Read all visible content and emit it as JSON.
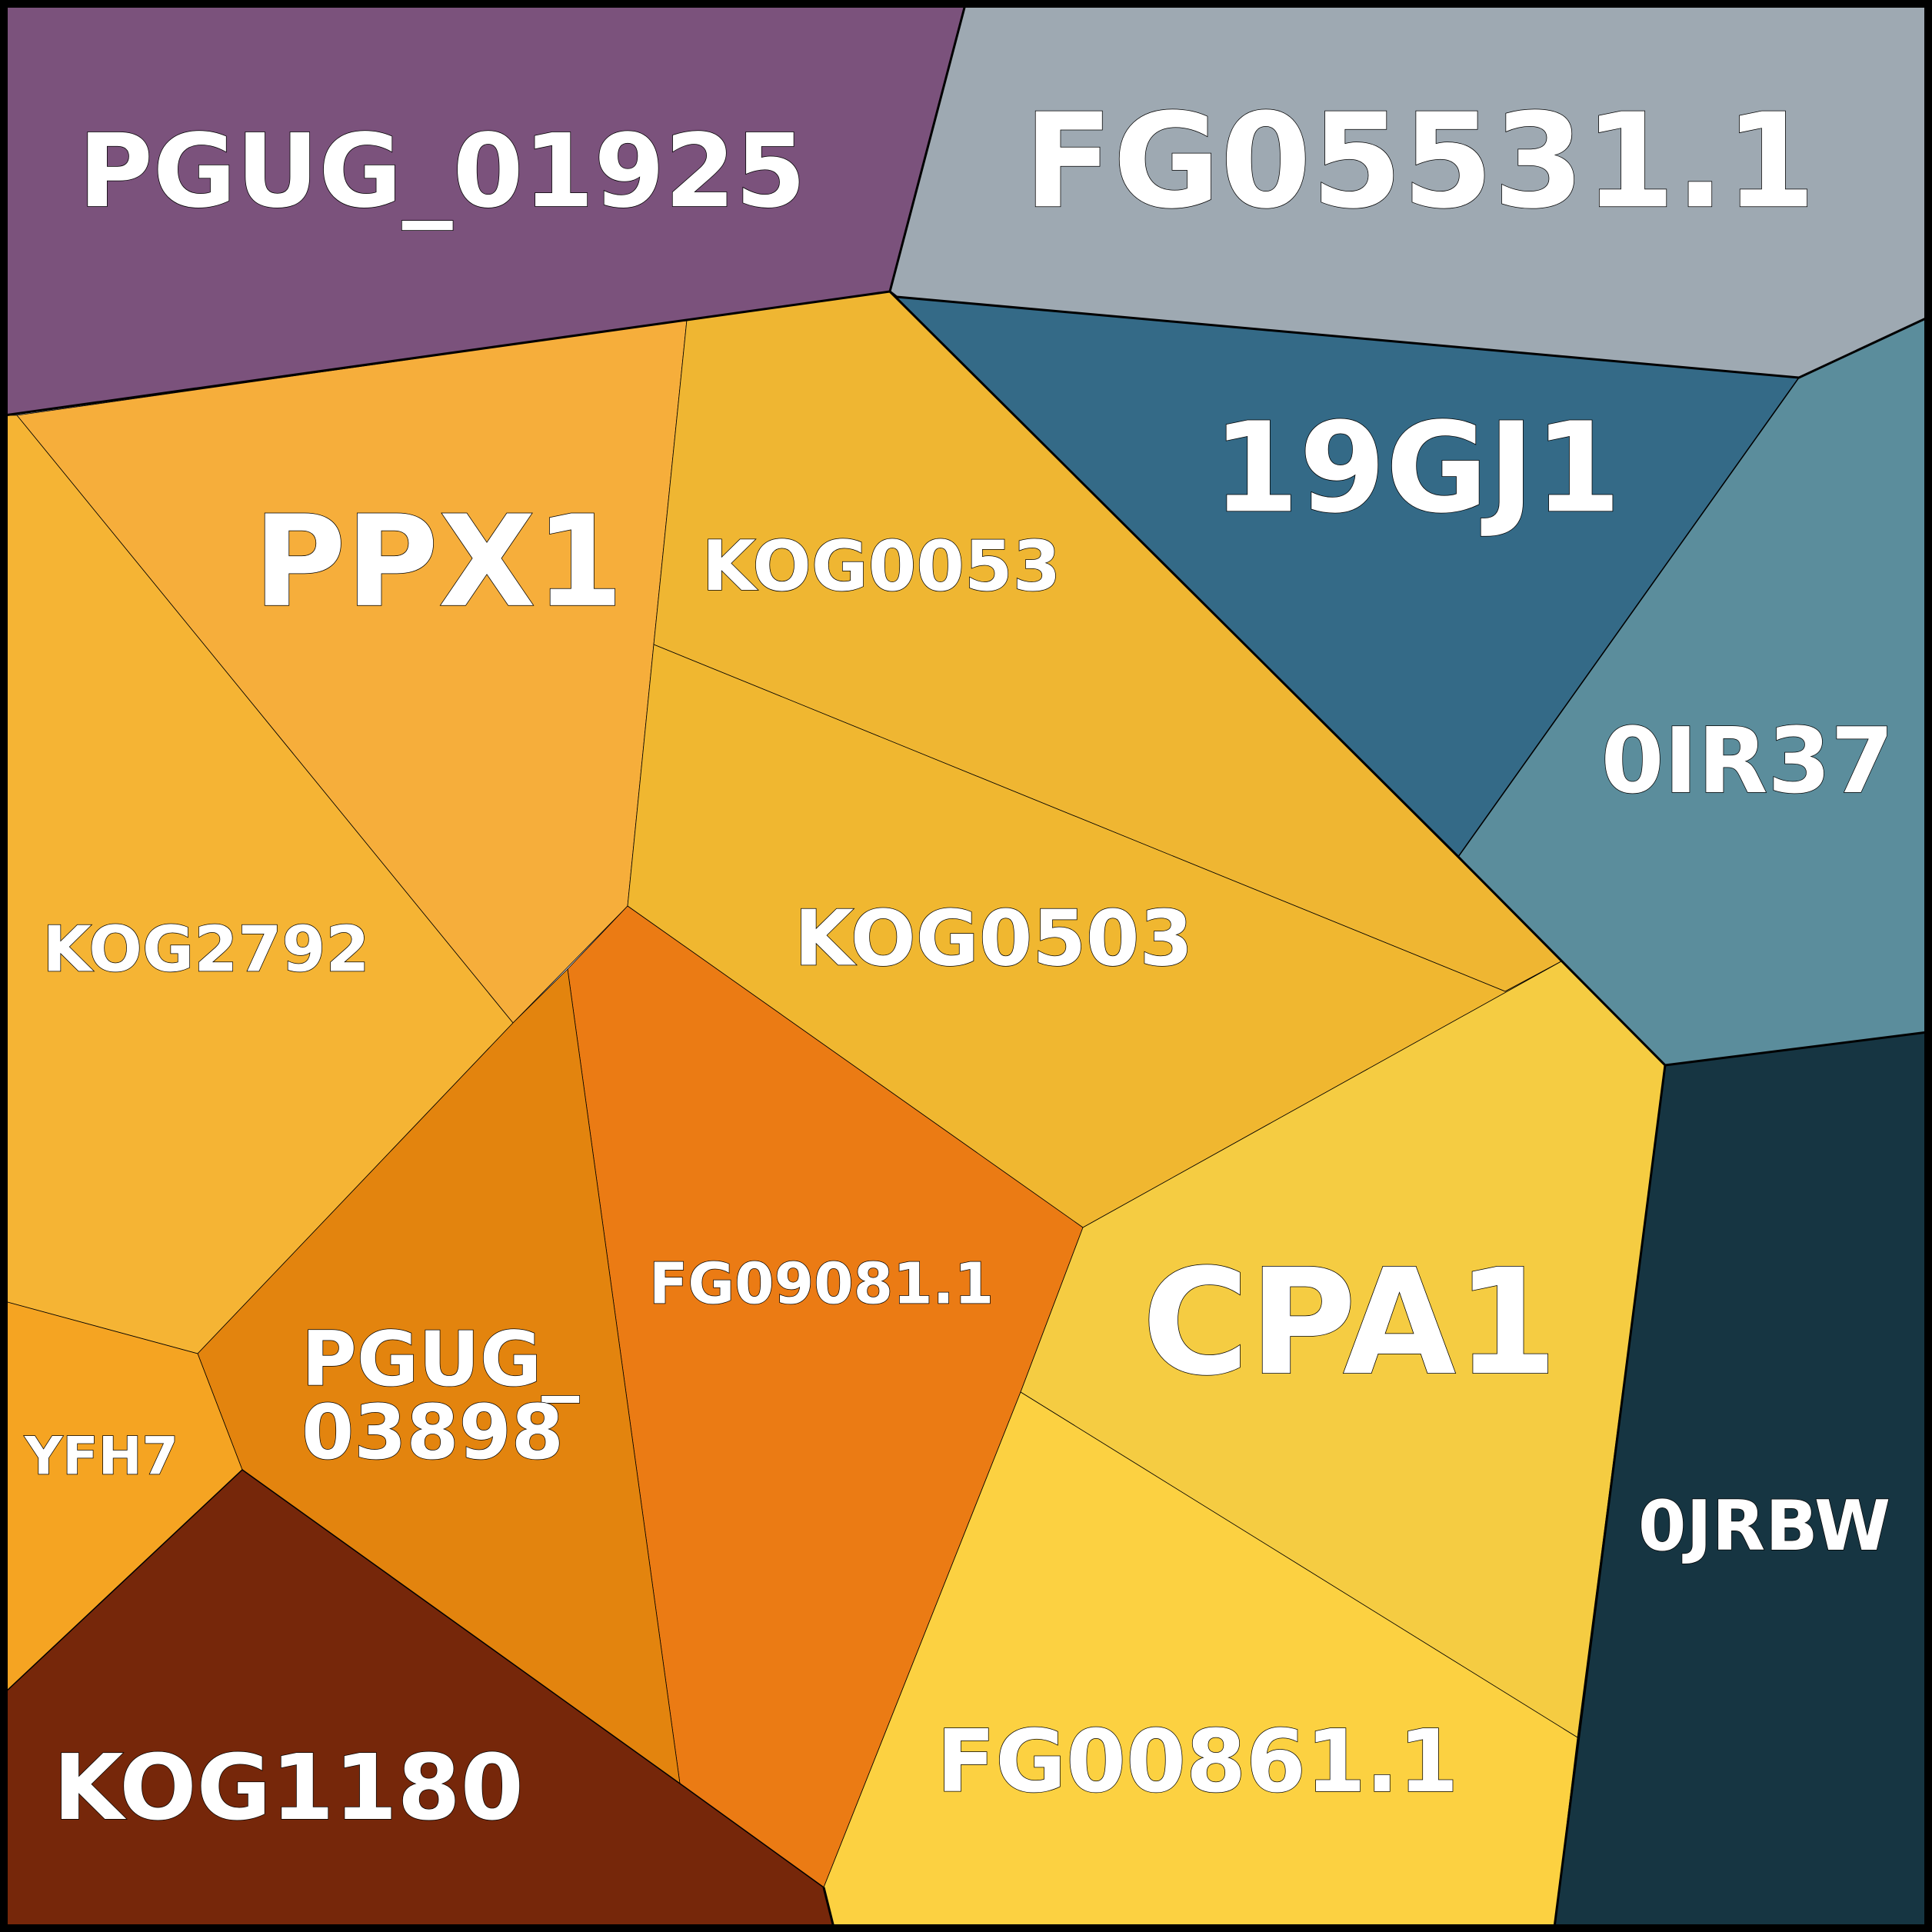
{
  "cells": [
    {
      "id": "PGUG_01925",
      "lines": [
        "PGUG_01925"
      ],
      "color": "#7B527C"
    },
    {
      "id": "FG05531.1",
      "lines": [
        "FG05531.1"
      ],
      "color": "#9EA9B2"
    },
    {
      "id": "19GJ1",
      "lines": [
        "19GJ1"
      ],
      "color": "#346A87"
    },
    {
      "id": "0IR37",
      "lines": [
        "0IR37"
      ],
      "color": "#5B8D9C"
    },
    {
      "id": "PPX1",
      "lines": [
        "PPX1"
      ],
      "color": "#F6AE3B"
    },
    {
      "id": "KOG0053",
      "lines": [
        "KOG0053"
      ],
      "color": "#EFB632"
    },
    {
      "id": "KOG2792",
      "lines": [
        "KOG2792"
      ],
      "color": "#F5B434"
    },
    {
      "id": "KOG0503",
      "lines": [
        "KOG0503"
      ],
      "color": "#F0B730"
    },
    {
      "id": "FG09081.1",
      "lines": [
        "FG09081.1"
      ],
      "color": "#EB7B14"
    },
    {
      "id": "PGUG_03898",
      "lines": [
        "PGUG_",
        "03898"
      ],
      "color": "#E3840E"
    },
    {
      "id": "YFH7",
      "lines": [
        "YFH7"
      ],
      "color": "#F5A422"
    },
    {
      "id": "CPA1",
      "lines": [
        "CPA1"
      ],
      "color": "#F5CC42"
    },
    {
      "id": "FG00861.1",
      "lines": [
        "FG00861.1"
      ],
      "color": "#FCD141"
    },
    {
      "id": "0JRBW",
      "lines": [
        "0JRBW"
      ],
      "color": "#163542"
    },
    {
      "id": "KOG1180",
      "lines": [
        "KOG1180"
      ],
      "color": "#76270A"
    }
  ]
}
